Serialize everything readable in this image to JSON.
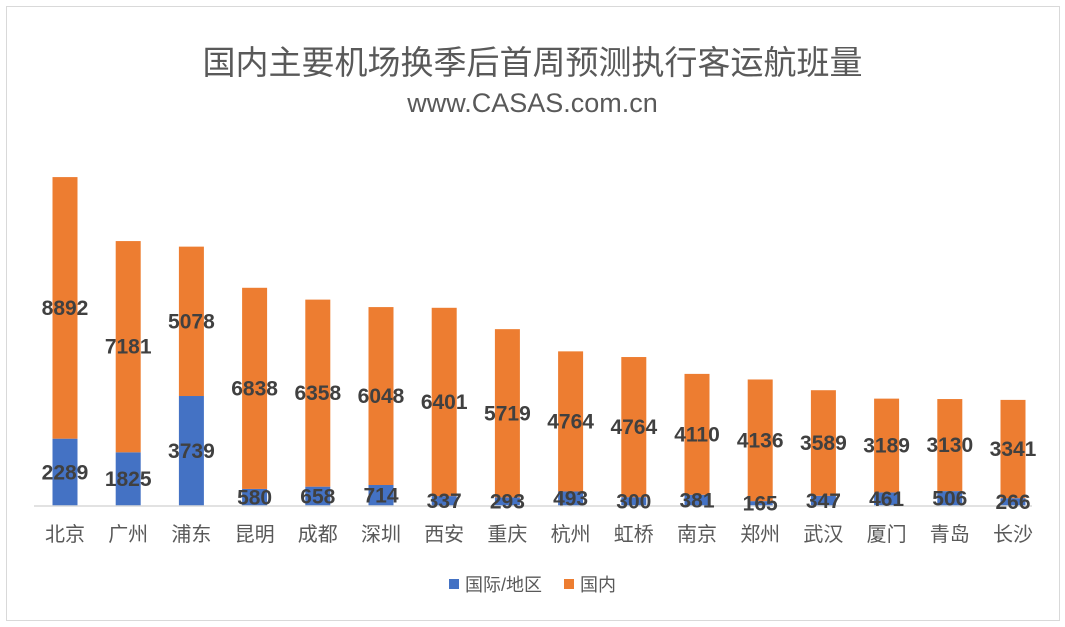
{
  "chart_data": {
    "type": "bar",
    "stacked": true,
    "title": "国内主要机场换季后首周预测执行客运航班量",
    "subtitle": "www.CASAS.com.cn",
    "categories": [
      "北京",
      "广州",
      "浦东",
      "昆明",
      "成都",
      "深圳",
      "西安",
      "重庆",
      "杭州",
      "虹桥",
      "南京",
      "郑州",
      "武汉",
      "厦门",
      "青岛",
      "长沙"
    ],
    "series": [
      {
        "name": "国际/地区",
        "color": "#4472c4",
        "values": [
          2289,
          1825,
          3739,
          580,
          658,
          714,
          337,
          293,
          493,
          300,
          381,
          165,
          347,
          461,
          506,
          266
        ]
      },
      {
        "name": "国内",
        "color": "#ed7d31",
        "values": [
          8892,
          7181,
          5078,
          6838,
          6358,
          6048,
          6401,
          5719,
          4764,
          4764,
          4110,
          4136,
          3589,
          3189,
          3130,
          3341
        ]
      }
    ],
    "ylim": [
      0,
      12000
    ],
    "grid": false,
    "yaxis_visible": false,
    "legend_position": "bottom"
  }
}
